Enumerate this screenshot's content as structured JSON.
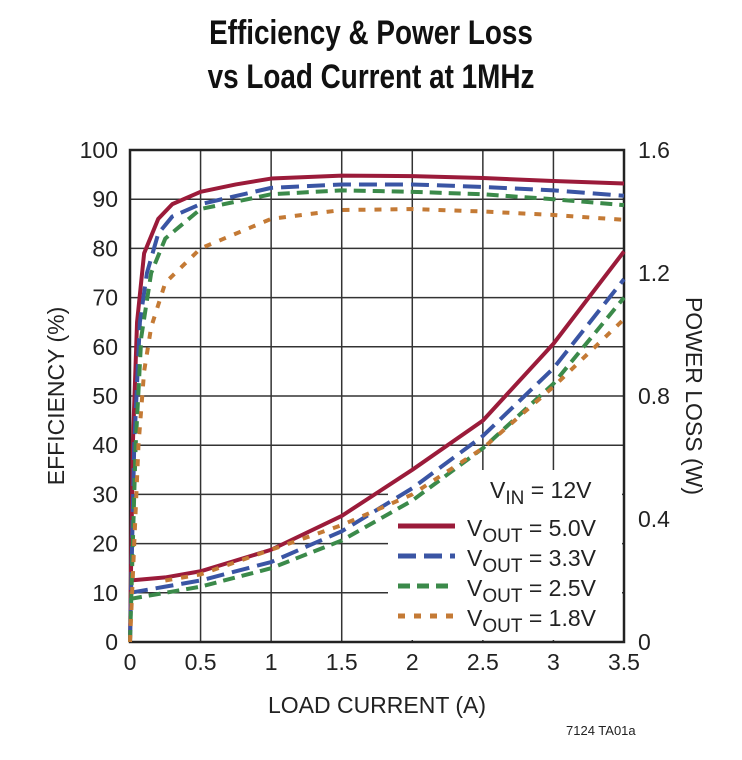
{
  "chart_data": {
    "type": "line",
    "title_lines": [
      "Efficiency & Power Loss",
      "vs Load Current at 1MHz"
    ],
    "xlabel": "LOAD CURRENT (A)",
    "ylabel": "EFFICIENCY (%)",
    "y2label": "POWER LOSS (W)",
    "xlim": [
      0,
      3.5
    ],
    "ylim": [
      0,
      100
    ],
    "y2lim": [
      0,
      1.6
    ],
    "xticks": [
      "0",
      "0.5",
      "1",
      "1.5",
      "2",
      "2.5",
      "3",
      "3.5"
    ],
    "yticks": [
      "0",
      "10",
      "20",
      "30",
      "40",
      "50",
      "60",
      "70",
      "80",
      "90",
      "100"
    ],
    "y2ticks": [
      "0",
      "0.4",
      "0.8",
      "1.2",
      "1.6"
    ],
    "grid": true,
    "legend_position": "bottom-right",
    "legend_header": {
      "main": "V",
      "sub": "IN",
      "rest": " = 12V"
    },
    "series": [
      {
        "name": "VOUT = 5.0V",
        "label": {
          "main": "V",
          "sub": "OUT",
          "rest": " = 5.0V"
        },
        "color": "#9b1b3a",
        "dash": "solid",
        "efficiency": {
          "x": [
            0,
            0.02,
            0.05,
            0.1,
            0.2,
            0.3,
            0.5,
            0.75,
            1,
            1.5,
            2,
            2.5,
            3,
            3.5
          ],
          "y": [
            0,
            40,
            65,
            79,
            86,
            89,
            91.5,
            93,
            94.2,
            94.8,
            94.7,
            94.3,
            93.7,
            93.2
          ]
        },
        "power_loss": {
          "x": [
            0,
            0.25,
            0.5,
            1,
            1.5,
            2,
            2.5,
            3,
            3.5
          ],
          "y": [
            0.2,
            0.21,
            0.23,
            0.3,
            0.41,
            0.56,
            0.72,
            0.97,
            1.27
          ]
        }
      },
      {
        "name": "VOUT = 3.3V",
        "label": {
          "main": "V",
          "sub": "OUT",
          "rest": " = 3.3V"
        },
        "color": "#3a55a4",
        "dash": "long",
        "efficiency": {
          "x": [
            0,
            0.03,
            0.07,
            0.12,
            0.2,
            0.3,
            0.5,
            1,
            1.5,
            2,
            2.5,
            3,
            3.5
          ],
          "y": [
            0,
            40,
            65,
            75,
            83,
            86.5,
            89,
            92.3,
            93,
            93,
            92.5,
            91.8,
            90.7
          ]
        },
        "power_loss": {
          "x": [
            0,
            0.25,
            0.5,
            1,
            1.5,
            2,
            2.5,
            3,
            3.5
          ],
          "y": [
            0.16,
            0.18,
            0.2,
            0.26,
            0.36,
            0.5,
            0.67,
            0.89,
            1.18
          ]
        }
      },
      {
        "name": "VOUT = 2.5V",
        "label": {
          "main": "V",
          "sub": "OUT",
          "rest": " = 2.5V"
        },
        "color": "#3b8a4a",
        "dash": "medium",
        "efficiency": {
          "x": [
            0,
            0.04,
            0.08,
            0.15,
            0.25,
            0.5,
            1,
            1.5,
            2,
            2.5,
            3,
            3.5
          ],
          "y": [
            0,
            40,
            62,
            75,
            82,
            88,
            91,
            91.8,
            91.5,
            91,
            90,
            88.8
          ]
        },
        "power_loss": {
          "x": [
            0,
            0.25,
            0.5,
            1,
            1.5,
            2,
            2.5,
            3,
            3.5
          ],
          "y": [
            0.14,
            0.16,
            0.18,
            0.24,
            0.33,
            0.46,
            0.63,
            0.84,
            1.12
          ]
        }
      },
      {
        "name": "VOUT = 1.8V",
        "label": {
          "main": "V",
          "sub": "OUT",
          "rest": " = 1.8V"
        },
        "color": "#c47a35",
        "dash": "short",
        "efficiency": {
          "x": [
            0,
            0.03,
            0.06,
            0.1,
            0.15,
            0.25,
            0.5,
            1,
            1.5,
            2,
            2.5,
            3,
            3.5
          ],
          "y": [
            0,
            20,
            40,
            55,
            64,
            73,
            80,
            86,
            87.8,
            88,
            87.5,
            86.8,
            85.8
          ]
        },
        "power_loss": {
          "x": [
            0.25,
            0.5,
            1,
            1.5,
            2,
            2.5,
            3,
            3.5
          ],
          "y": [
            0.2,
            0.22,
            0.3,
            0.38,
            0.48,
            0.63,
            0.83,
            1.05
          ]
        }
      }
    ]
  },
  "figure_id": "7124 TA01a"
}
